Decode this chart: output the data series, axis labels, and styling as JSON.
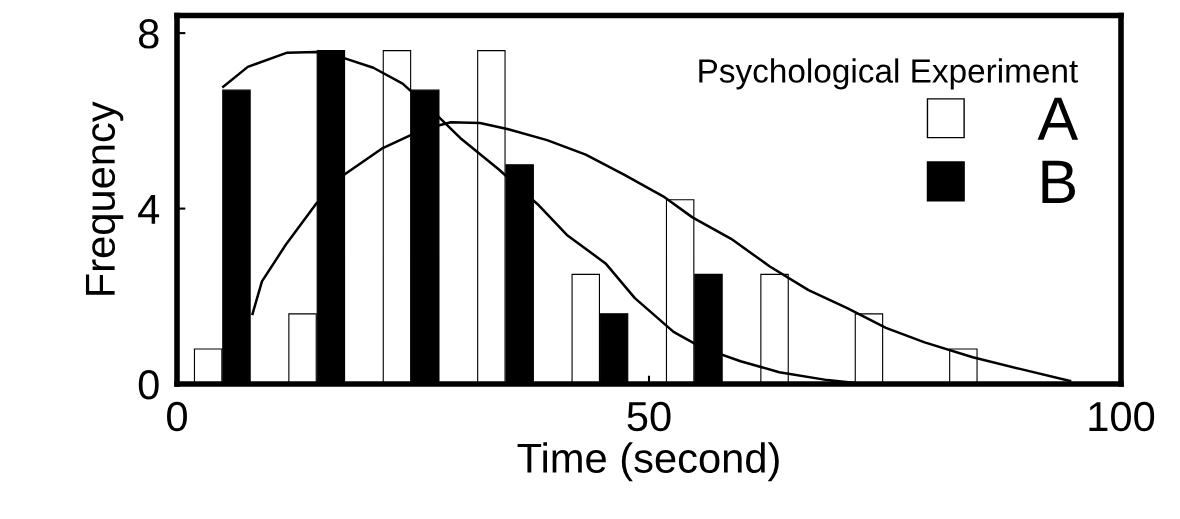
{
  "chart_data": {
    "type": "bar",
    "xlabel": "Time (second)",
    "ylabel": "Frequency",
    "legend_title": "Psychological Experiment",
    "xlim": [
      0,
      100
    ],
    "xticks": [
      0,
      50,
      100
    ],
    "ylim": [
      0,
      8.4
    ],
    "yticks": [
      0,
      4,
      8
    ],
    "legend": "top right",
    "grid": false,
    "series": [
      {
        "name": "A",
        "color": "#ffffff",
        "x": [
          3.3,
          13.3,
          23.3,
          33.3,
          43.3,
          53.3,
          63.3,
          73.3,
          83.3
        ],
        "values": [
          0.8,
          1.6,
          7.6,
          7.6,
          2.5,
          4.2,
          2.5,
          1.6,
          0.8
        ]
      },
      {
        "name": "B",
        "color": "#000000",
        "x": [
          6.3,
          16.3,
          26.3,
          36.3,
          46.3,
          56.3
        ],
        "values": [
          6.7,
          7.6,
          6.7,
          5.0,
          1.6,
          2.5
        ]
      },
      {
        "type": "line",
        "color": "#000000",
        "x": [
          8.0,
          9,
          11.6,
          14.7,
          17.7,
          21.8,
          25.9,
          29,
          32.1,
          35.1,
          39.2,
          43.3,
          47.4,
          51.5,
          54.6,
          58.7,
          62.8,
          66.9,
          71,
          75.1,
          79.2,
          84.3,
          89.4,
          94.6
        ],
        "values": [
          1.6,
          2.34,
          3.2,
          4.1,
          4.77,
          5.38,
          5.79,
          5.97,
          5.95,
          5.81,
          5.56,
          5.23,
          4.77,
          4.28,
          3.8,
          3.31,
          2.68,
          2.14,
          1.73,
          1.28,
          0.95,
          0.61,
          0.34,
          0.07
        ]
      },
      {
        "type": "line",
        "color": "#000000",
        "x": [
          4.9,
          7.5,
          11.6,
          14.7,
          17.7,
          20.8,
          23.9,
          26.9,
          30,
          34.1,
          38.2,
          41.3,
          45.4,
          48.5,
          52.6,
          55.6,
          59.7,
          63.8,
          68.9,
          72
        ],
        "values": [
          6.78,
          7.23,
          7.55,
          7.57,
          7.43,
          7.21,
          6.85,
          6.26,
          5.61,
          4.89,
          4.1,
          3.4,
          2.75,
          1.96,
          1.19,
          0.83,
          0.52,
          0.27,
          0.09,
          0.02
        ]
      }
    ]
  }
}
